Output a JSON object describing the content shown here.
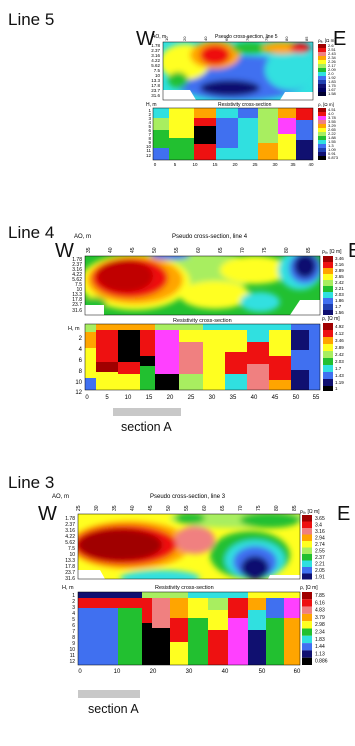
{
  "panels": [
    {
      "title": "Line 5",
      "west": "W",
      "east": "E",
      "pseudo_title": "Pseudo cross-section, line 5",
      "resist_title": "Resistivity cross-section",
      "ao_label": "AO, m",
      "h_label": "H, m",
      "rho_unit": "ρₐ, [Ω m]",
      "rho_unit2": "ρ, [Ω m]",
      "ao_ticks": [
        "1.78",
        "2.37",
        "3.16",
        "4.22",
        "5.62",
        "7.5",
        "10",
        "13.3",
        "17.8",
        "23.7",
        "31.6"
      ],
      "top_ticks": [
        "10",
        "20",
        "40",
        "60",
        "70",
        "75",
        "80",
        "85"
      ],
      "x_ticks": [
        "0",
        "5",
        "10",
        "15",
        "20",
        "25",
        "30",
        "35",
        "40"
      ],
      "h_ticks": [
        "1",
        "2",
        "3",
        "4",
        "5",
        "6",
        "7",
        "8",
        "9",
        "10",
        "11",
        "12"
      ],
      "legend_a": [
        "2.6",
        "2.51",
        "2.43",
        "2.34",
        "2.26",
        "2.17",
        "2.09",
        "2.0",
        "1.92",
        "1.83",
        "1.75",
        "1.67",
        "1.58"
      ],
      "legend_b": [
        "4.51",
        "4.0",
        "3.78",
        "3.55",
        "3.29",
        "2.65",
        "2.22",
        "1.88",
        "1.55",
        "1.3",
        "1.09",
        "0.91",
        "0.873"
      ],
      "section_label": ""
    },
    {
      "title": "Line 4",
      "west": "W",
      "east": "E",
      "pseudo_title": "Pseudo cross-section, line 4",
      "resist_title": "Resistivity cross-section",
      "ao_label": "AO, m",
      "h_label": "H, m",
      "rho_unit": "ρₐ, [Ω m]",
      "rho_unit2": "ρ, [Ω m]",
      "ao_ticks": [
        "1.78",
        "2.37",
        "3.16",
        "4.22",
        "5.62",
        "7.5",
        "10",
        "13.3",
        "17.8",
        "23.7",
        "31.6"
      ],
      "top_ticks": [
        "35",
        "40",
        "45",
        "50",
        "55",
        "60",
        "65",
        "70",
        "75",
        "80",
        "85"
      ],
      "x_ticks": [
        "0",
        "5",
        "10",
        "15",
        "20",
        "25",
        "30",
        "35",
        "40",
        "45",
        "50",
        "55"
      ],
      "h_ticks": [
        "2",
        "4",
        "6",
        "8",
        "10",
        "12"
      ],
      "legend_a": [
        "3.46",
        "3.16",
        "2.89",
        "2.65",
        "2.42",
        "2.21",
        "2.03",
        "1.86",
        "1.7",
        "1.56"
      ],
      "legend_b": [
        "4.92",
        "4.12",
        "3.46",
        "2.89",
        "2.42",
        "2.03",
        "1.7",
        "1.43",
        "1.19",
        "1"
      ],
      "section_label": "section A"
    },
    {
      "title": "Line 3",
      "west": "W",
      "east": "E",
      "pseudo_title": "Pseudo cross-section, line 3",
      "resist_title": "Resistivity cross-section",
      "ao_label": "AO, m",
      "h_label": "H, m",
      "rho_unit": "ρₐ, [Ω m]",
      "rho_unit2": "ρ, [Ω m]",
      "ao_ticks": [
        "1.78",
        "2.37",
        "3.16",
        "4.22",
        "5.62",
        "7.5",
        "10",
        "13.3",
        "17.8",
        "23.7",
        "31.6"
      ],
      "top_ticks": [
        "25",
        "30",
        "35",
        "40",
        "45",
        "50",
        "55",
        "60",
        "65",
        "70",
        "75",
        "80",
        "85"
      ],
      "x_ticks": [
        "0",
        "10",
        "20",
        "30",
        "40",
        "50",
        "60"
      ],
      "h_ticks": [
        "1",
        "2",
        "3",
        "4",
        "5",
        "6",
        "7",
        "8",
        "9",
        "10",
        "11",
        "12"
      ],
      "legend_a": [
        "3.65",
        "3.4",
        "3.16",
        "2.94",
        "2.74",
        "2.55",
        "2.37",
        "2.21",
        "2.05",
        "1.91"
      ],
      "legend_b": [
        "7.85",
        "6.16",
        "4.83",
        "3.79",
        "2.98",
        "2.34",
        "1.83",
        "1.44",
        "1.13",
        "0.886"
      ],
      "section_label": "section A"
    }
  ],
  "palette": {
    "dark_red": "#a00000",
    "red": "#ee1111",
    "salmon": "#f08080",
    "orange": "#ffa500",
    "yellow": "#ffff20",
    "light_green": "#a8ee60",
    "green": "#22c030",
    "cyan": "#30e0e0",
    "blue": "#4070f0",
    "navy": "#101070",
    "black": "#000000",
    "magenta": "#ff40ff"
  }
}
